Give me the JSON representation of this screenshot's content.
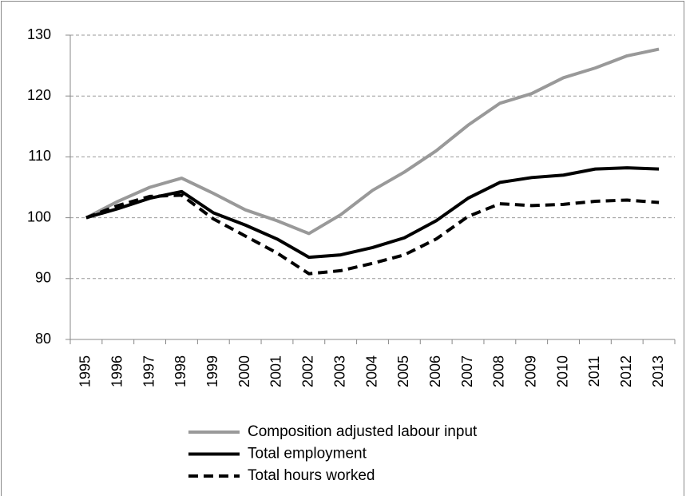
{
  "chart_data": {
    "type": "line",
    "categories": [
      "1995",
      "1996",
      "1997",
      "1998",
      "1999",
      "2000",
      "2001",
      "2002",
      "2003",
      "2004",
      "2005",
      "2006",
      "2007",
      "2008",
      "2009",
      "2010",
      "2011",
      "2012",
      "2013"
    ],
    "series": [
      {
        "name": "Composition adjusted labour input",
        "color": "#999999",
        "dashed": false,
        "values": [
          100,
          102.7,
          105,
          106.5,
          104,
          101.3,
          99.5,
          97.4,
          100.5,
          104.5,
          107.5,
          111,
          115.2,
          118.8,
          120.4,
          123,
          124.6,
          126.6,
          127.7
        ]
      },
      {
        "name": "Total employment",
        "color": "#000000",
        "dashed": false,
        "values": [
          100,
          101.5,
          103.2,
          104.3,
          100.8,
          98.8,
          96.5,
          93.5,
          93.9,
          95.1,
          96.7,
          99.5,
          103.2,
          105.8,
          106.6,
          107,
          108,
          108.2,
          108
        ]
      },
      {
        "name": "Total hours worked",
        "color": "#000000",
        "dashed": true,
        "values": [
          100,
          102,
          103.5,
          103.7,
          99.8,
          97,
          94.2,
          90.8,
          91.3,
          92.5,
          93.9,
          96.5,
          100.2,
          102.3,
          102,
          102.2,
          102.7,
          102.9,
          102.5
        ]
      }
    ],
    "ylim": [
      80,
      130
    ],
    "yticks": [
      80,
      90,
      100,
      110,
      120,
      130
    ],
    "grid": true
  }
}
